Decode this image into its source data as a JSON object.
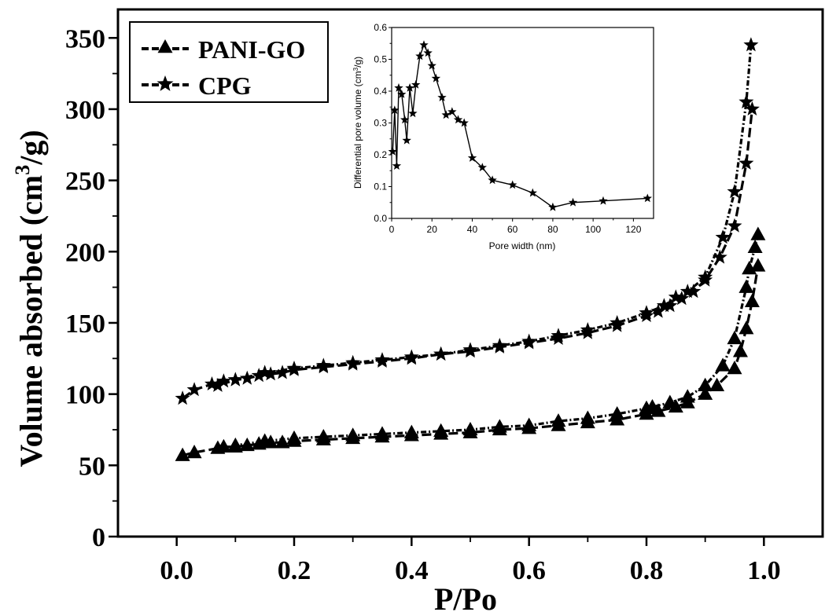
{
  "chart_data": [
    {
      "type": "line",
      "xlabel": "P/Po",
      "ylabel_main": "Volume absorbed (cm",
      "ylabel_sup": "3",
      "ylabel_end": "/g)",
      "xlim": [
        -0.1,
        1.1
      ],
      "ylim": [
        0,
        370
      ],
      "xticks": [
        "0.0",
        "0.2",
        "0.4",
        "0.6",
        "0.8",
        "1.0"
      ],
      "yticks": [
        "0",
        "50",
        "100",
        "150",
        "200",
        "250",
        "300",
        "350"
      ],
      "legend_position": "top-left",
      "marker_color": "#000000",
      "series": [
        {
          "name": "PANI-GO",
          "marker": "triangle",
          "adsorption": {
            "x": [
              0.01,
              0.03,
              0.07,
              0.08,
              0.1,
              0.12,
              0.14,
              0.16,
              0.18,
              0.2,
              0.25,
              0.3,
              0.35,
              0.4,
              0.45,
              0.5,
              0.55,
              0.6,
              0.65,
              0.7,
              0.75,
              0.8,
              0.82,
              0.85,
              0.87,
              0.9,
              0.92,
              0.95,
              0.96,
              0.97,
              0.98,
              0.99
            ],
            "y": [
              57,
              59,
              62,
              63,
              63,
              64,
              65,
              66,
              66,
              67,
              68,
              69,
              70,
              71,
              72,
              73,
              75,
              76,
              78,
              80,
              82,
              86,
              88,
              91,
              94,
              100,
              106,
              118,
              130,
              146,
              165,
              190
            ]
          },
          "desorption": {
            "x": [
              0.99,
              0.985,
              0.975,
              0.97,
              0.95,
              0.93,
              0.9,
              0.87,
              0.84,
              0.81,
              0.8,
              0.75,
              0.7,
              0.65,
              0.6,
              0.55,
              0.5,
              0.45,
              0.4,
              0.35,
              0.3,
              0.25,
              0.2,
              0.15,
              0.1
            ],
            "y": [
              212,
              203,
              188,
              175,
              139,
              120,
              106,
              98,
              94,
              91,
              90,
              86,
              83,
              81,
              78,
              77,
              75,
              74,
              73,
              72,
              71,
              70,
              69,
              67,
              64
            ]
          }
        },
        {
          "name": "CPG",
          "marker": "star",
          "adsorption": {
            "x": [
              0.01,
              0.03,
              0.06,
              0.08,
              0.1,
              0.12,
              0.14,
              0.16,
              0.18,
              0.2,
              0.25,
              0.3,
              0.35,
              0.4,
              0.45,
              0.5,
              0.55,
              0.6,
              0.65,
              0.7,
              0.75,
              0.8,
              0.82,
              0.84,
              0.86,
              0.88,
              0.9,
              0.925,
              0.95,
              0.97,
              0.98
            ],
            "y": [
              97,
              103,
              107,
              109,
              110,
              111,
              113,
              114,
              115,
              117,
              119,
              121,
              123,
              125,
              128,
              130,
              133,
              136,
              139,
              143,
              148,
              155,
              158,
              162,
              167,
              172,
              180,
              196,
              218,
              262,
              300
            ]
          },
          "desorption": {
            "x": [
              0.978,
              0.97,
              0.95,
              0.93,
              0.9,
              0.87,
              0.85,
              0.83,
              0.8,
              0.75,
              0.7,
              0.65,
              0.6,
              0.55,
              0.5,
              0.45,
              0.4,
              0.35,
              0.3,
              0.25,
              0.2,
              0.15,
              0.1,
              0.07
            ],
            "y": [
              345,
              305,
              242,
              210,
              182,
              172,
              168,
              162,
              157,
              150,
              145,
              141,
              137,
              134,
              131,
              128,
              126,
              124,
              122,
              120,
              118,
              115,
              110,
              106
            ]
          }
        }
      ]
    },
    {
      "type": "line",
      "xlabel": "Pore width (nm)",
      "ylabel_main": "Differential pore volume (cm",
      "ylabel_sup": "3",
      "ylabel_end": "/g)",
      "xlim": [
        0,
        130
      ],
      "ylim": [
        0,
        0.6
      ],
      "xticks": [
        "0",
        "20",
        "40",
        "60",
        "80",
        "100",
        "120"
      ],
      "yticks": [
        "0.0",
        "0.1",
        "0.2",
        "0.3",
        "0.4",
        "0.5",
        "0.6"
      ],
      "series": [
        {
          "marker": "star",
          "x": [
            0.5,
            1.5,
            2.5,
            3.5,
            5,
            6.5,
            7.5,
            9,
            10.5,
            12,
            14,
            16,
            18,
            20,
            22,
            25,
            27,
            30,
            33,
            36,
            40,
            45,
            50,
            60,
            70,
            80,
            90,
            105,
            127
          ],
          "y": [
            0.21,
            0.34,
            0.165,
            0.41,
            0.39,
            0.31,
            0.245,
            0.41,
            0.33,
            0.42,
            0.51,
            0.545,
            0.52,
            0.48,
            0.44,
            0.38,
            0.325,
            0.335,
            0.31,
            0.3,
            0.19,
            0.16,
            0.12,
            0.105,
            0.08,
            0.035,
            0.05,
            0.055,
            0.063
          ]
        }
      ]
    }
  ]
}
